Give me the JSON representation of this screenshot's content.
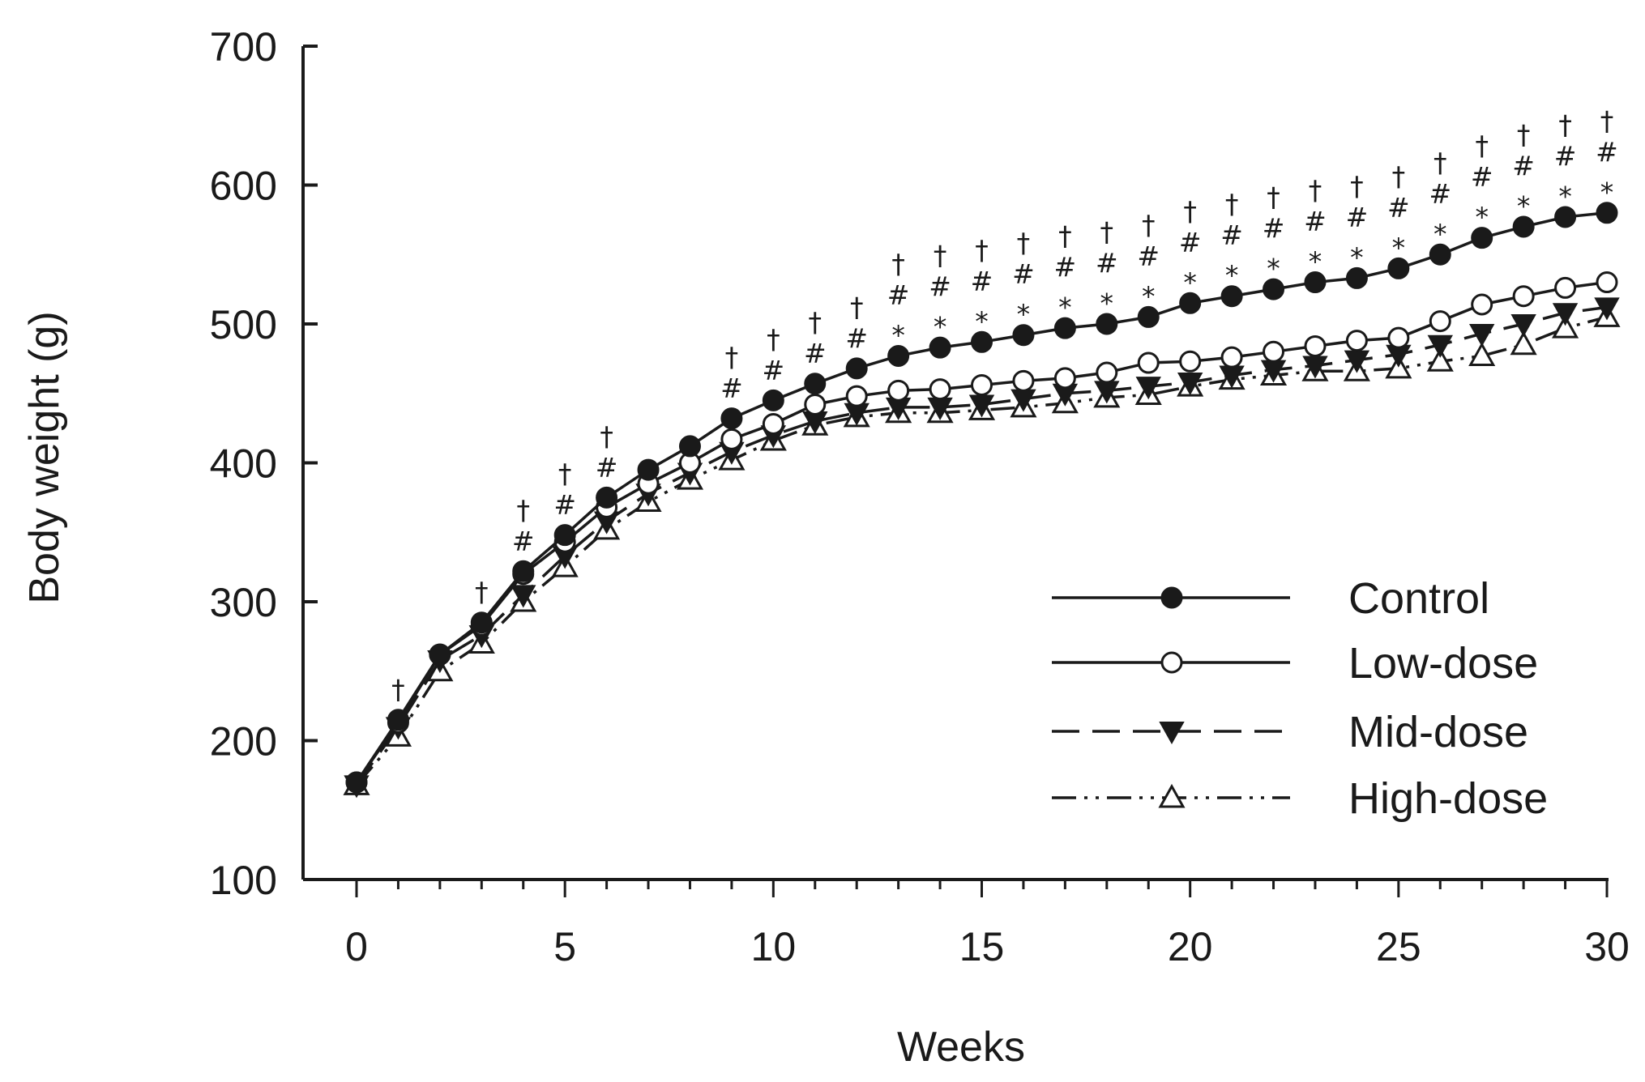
{
  "chart_data": {
    "type": "line",
    "title": "",
    "xlabel": "Weeks",
    "ylabel": "Body weight (g)",
    "xlim": [
      0,
      30
    ],
    "ylim": [
      100,
      700
    ],
    "xticks": [
      0,
      5,
      10,
      15,
      20,
      25,
      30
    ],
    "yticks": [
      100,
      200,
      300,
      400,
      500,
      600,
      700
    ],
    "grid": false,
    "legend_position": "bottom-right",
    "x": [
      0,
      1,
      2,
      3,
      4,
      5,
      6,
      7,
      8,
      9,
      10,
      11,
      12,
      13,
      14,
      15,
      16,
      17,
      18,
      19,
      20,
      21,
      22,
      23,
      24,
      25,
      26,
      27,
      28,
      29,
      30
    ],
    "series": [
      {
        "name": "Control",
        "marker": "filled-circle",
        "line": "solid",
        "values": [
          170,
          215,
          262,
          285,
          322,
          348,
          375,
          395,
          412,
          432,
          445,
          457,
          468,
          477,
          483,
          487,
          492,
          497,
          500,
          505,
          515,
          520,
          525,
          530,
          533,
          540,
          550,
          562,
          570,
          577,
          580
        ]
      },
      {
        "name": "Low-dose",
        "marker": "open-circle",
        "line": "solid",
        "values": [
          170,
          213,
          262,
          283,
          320,
          343,
          368,
          385,
          400,
          417,
          428,
          442,
          448,
          452,
          453,
          456,
          459,
          461,
          465,
          472,
          473,
          476,
          480,
          484,
          488,
          490,
          502,
          514,
          520,
          526,
          530
        ]
      },
      {
        "name": "Mid-dose",
        "marker": "filled-triangle-down",
        "line": "dashed",
        "values": [
          168,
          210,
          258,
          276,
          305,
          333,
          358,
          378,
          393,
          408,
          420,
          430,
          436,
          440,
          440,
          442,
          446,
          450,
          452,
          455,
          458,
          463,
          467,
          470,
          474,
          478,
          485,
          493,
          500,
          508,
          512
        ]
      },
      {
        "name": "High-dose",
        "marker": "open-triangle-up",
        "line": "dash-dot-dot",
        "values": [
          168,
          203,
          250,
          270,
          300,
          325,
          352,
          372,
          388,
          402,
          416,
          427,
          433,
          436,
          436,
          438,
          440,
          443,
          447,
          449,
          455,
          460,
          463,
          466,
          466,
          468,
          473,
          477,
          485,
          497,
          505
        ]
      }
    ],
    "significance": [
      {
        "x": 1,
        "marks": [
          "†"
        ]
      },
      {
        "x": 3,
        "marks": [
          "†"
        ]
      },
      {
        "x": 4,
        "marks": [
          "†",
          "#"
        ]
      },
      {
        "x": 5,
        "marks": [
          "†",
          "#"
        ]
      },
      {
        "x": 6,
        "marks": [
          "†",
          "#"
        ]
      },
      {
        "x": 9,
        "marks": [
          "†",
          "#"
        ]
      },
      {
        "x": 10,
        "marks": [
          "†",
          "#"
        ]
      },
      {
        "x": 11,
        "marks": [
          "†",
          "#"
        ]
      },
      {
        "x": 12,
        "marks": [
          "†",
          "#"
        ]
      },
      {
        "x": 13,
        "marks": [
          "†",
          "#",
          "*"
        ]
      },
      {
        "x": 14,
        "marks": [
          "†",
          "#",
          "*"
        ]
      },
      {
        "x": 15,
        "marks": [
          "†",
          "#",
          "*"
        ]
      },
      {
        "x": 16,
        "marks": [
          "†",
          "#",
          "*"
        ]
      },
      {
        "x": 17,
        "marks": [
          "†",
          "#",
          "*"
        ]
      },
      {
        "x": 18,
        "marks": [
          "†",
          "#",
          "*"
        ]
      },
      {
        "x": 19,
        "marks": [
          "†",
          "#",
          "*"
        ]
      },
      {
        "x": 20,
        "marks": [
          "†",
          "#",
          "*"
        ]
      },
      {
        "x": 21,
        "marks": [
          "†",
          "#",
          "*"
        ]
      },
      {
        "x": 22,
        "marks": [
          "†",
          "#",
          "*"
        ]
      },
      {
        "x": 23,
        "marks": [
          "†",
          "#",
          "*"
        ]
      },
      {
        "x": 24,
        "marks": [
          "†",
          "#",
          "*"
        ]
      },
      {
        "x": 25,
        "marks": [
          "†",
          "#",
          "*"
        ]
      },
      {
        "x": 26,
        "marks": [
          "†",
          "#",
          "*"
        ]
      },
      {
        "x": 27,
        "marks": [
          "†",
          "#",
          "*"
        ]
      },
      {
        "x": 28,
        "marks": [
          "†",
          "#",
          "*"
        ]
      },
      {
        "x": 29,
        "marks": [
          "†",
          "#",
          "*"
        ]
      },
      {
        "x": 30,
        "marks": [
          "†",
          "#",
          "*"
        ]
      }
    ]
  }
}
